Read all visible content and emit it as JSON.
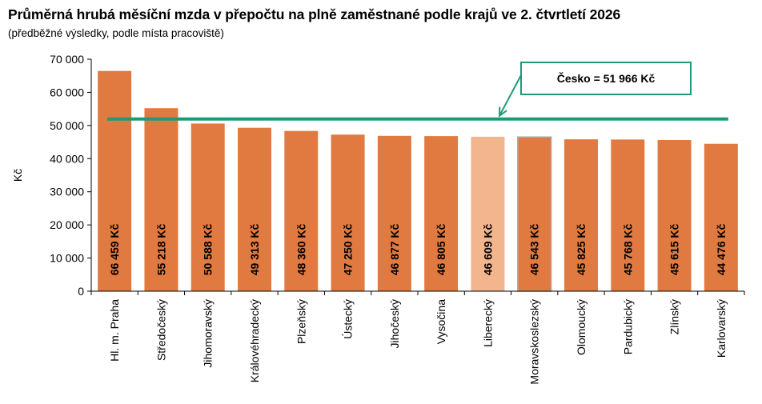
{
  "chart_data": {
    "type": "bar",
    "title": "Průměrná hrubá měsíční mzda v přepočtu na plně zaměstnané podle krajů ve 2. čtvrtletí 2026",
    "subtitle": "(předběžné výsledky, podle místa pracoviště)",
    "ylabel": "Kč",
    "xlabel": "",
    "ylim": [
      0,
      70000
    ],
    "yticks": [
      0,
      10000,
      20000,
      30000,
      40000,
      50000,
      60000,
      70000
    ],
    "ytick_labels": [
      "0",
      "10 000",
      "20 000",
      "30 000",
      "40 000",
      "50 000",
      "60 000",
      "70 000"
    ],
    "grid": false,
    "legend": "none",
    "categories": [
      "Hl. m. Praha",
      "Středočeský",
      "Jihomoravský",
      "Královéhradecký",
      "Plzeňský",
      "Ústecký",
      "Jihočeský",
      "Vysočina",
      "Liberecký",
      "Moravskoslezský",
      "Olomoucký",
      "Pardubický",
      "Zlínský",
      "Karlovarský"
    ],
    "values": [
      66459,
      55218,
      50588,
      49313,
      48360,
      47250,
      46877,
      46805,
      46609,
      46543,
      45825,
      45768,
      45615,
      44476
    ],
    "data_labels": [
      "66 459 Kč",
      "55 218 Kč",
      "50 588 Kč",
      "49 313 Kč",
      "48 360 Kč",
      "47 250 Kč",
      "46 877 Kč",
      "46 805 Kč",
      "46 609 Kč",
      "46 543 Kč",
      "45 825 Kč",
      "45 768 Kč",
      "45 615 Kč",
      "44 476 Kč"
    ],
    "highlight_index": 8,
    "reference_line": {
      "value": 51966,
      "label": "Česko = 51 966 Kč"
    },
    "colors": {
      "bar": "#E07A40",
      "bar_highlight": "#F2B58E",
      "reference_line": "#1E9A7A",
      "axis": "#000000",
      "bar_outline_special": "#B0B0B0"
    }
  }
}
